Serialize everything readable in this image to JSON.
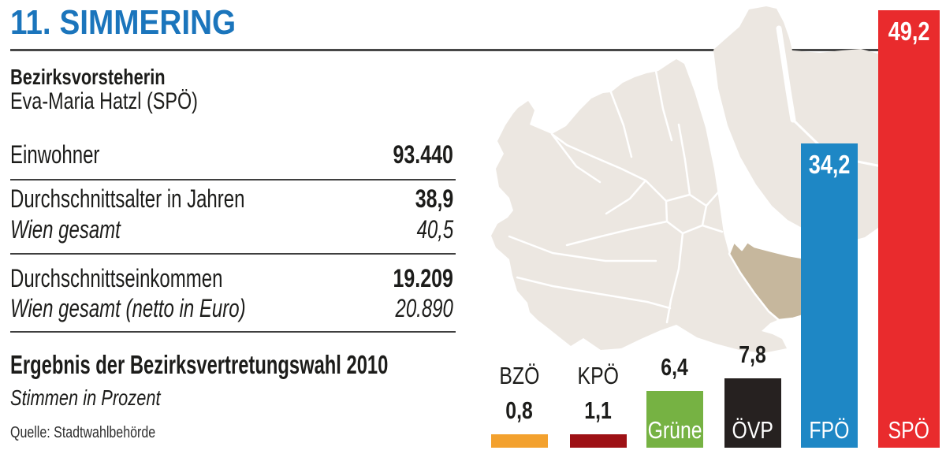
{
  "page": {
    "title": "11. SIMMERING",
    "accent_color": "#1b75bc"
  },
  "profile": {
    "role_label": "Bezirksvorsteherin",
    "person": "Eva-Maria Hatzl (SPÖ)"
  },
  "stats": [
    {
      "label": "Einwohner",
      "value": "93.440"
    },
    {
      "label": "Durchschnittsalter in Jahren",
      "value": "38,9",
      "compare_label": "Wien gesamt",
      "compare_value": "40,5"
    },
    {
      "label": "Durchschnittseinkommen",
      "value": "19.209",
      "compare_label": "Wien gesamt (netto in Euro)",
      "compare_value": "20.890"
    }
  ],
  "election": {
    "heading": "Ergebnis der Bezirksvertretungswahl 2010",
    "subheading": "Stimmen in Prozent"
  },
  "source": "Quelle: Stadtwahlbehörde",
  "map": {
    "description": "Karte der Wiener Bezirke, Simmering hervorgehoben",
    "highlighted_district": "Simmering",
    "base_color": "#ece7e1",
    "highlight_color": "#c6b79d",
    "border_color": "#ffffff"
  },
  "chart_data": {
    "type": "bar",
    "title": "Ergebnis der Bezirksvertretungswahl 2010",
    "ylabel": "Stimmen in Prozent",
    "ylim": [
      0,
      50
    ],
    "grid": false,
    "legend_position": "none",
    "categories": [
      "BZÖ",
      "KPÖ",
      "Grüne",
      "ÖVP",
      "FPÖ",
      "SPÖ"
    ],
    "values": [
      0.8,
      1.1,
      6.4,
      7.8,
      34.2,
      49.2
    ],
    "value_labels": [
      "0,8",
      "1,1",
      "6,4",
      "7,8",
      "34,2",
      "49,2"
    ],
    "colors": [
      "#f3a12e",
      "#9e1115",
      "#76b243",
      "#262120",
      "#1e87c5",
      "#e92b2d"
    ]
  }
}
